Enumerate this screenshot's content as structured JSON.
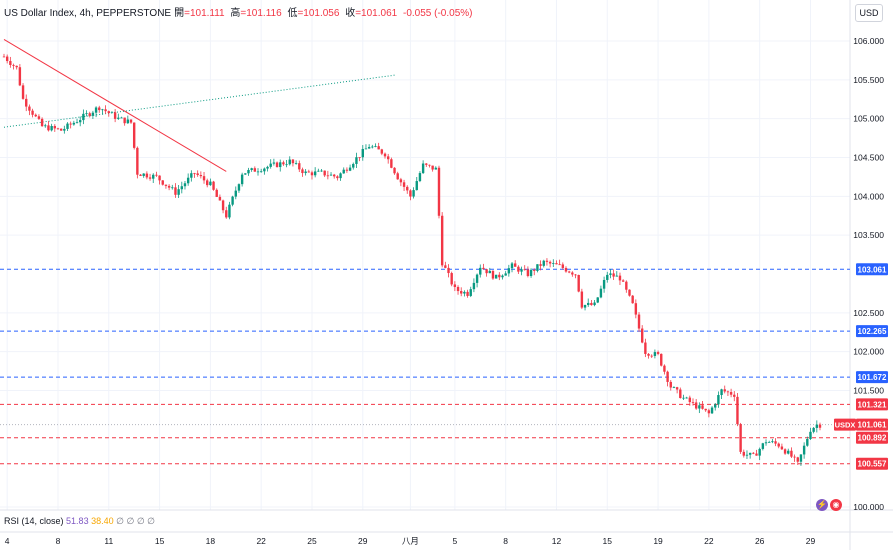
{
  "header": {
    "symbol": "US Dollar Index, 4h, PEPPERSTONE",
    "o_label": "開",
    "o_val": "=101.111",
    "h_label": "高",
    "h_val": "=101.116",
    "l_label": "低",
    "l_val": "=101.056",
    "c_label": "收",
    "c_val": "=101.061",
    "change": "-0.055 (-0.05%)"
  },
  "currency_button": "USD",
  "rsi": {
    "label": "RSI (14, close)",
    "v1": "51.83",
    "v2": "38.40",
    "rest": "∅ ∅ ∅ ∅"
  },
  "colors": {
    "up": "#089981",
    "down": "#f23645",
    "blue": "#2962ff",
    "red": "#f23645"
  },
  "chart_data": {
    "type": "candlestick",
    "ylim": [
      100.0,
      106.25
    ],
    "y_ticks": [
      "106.000",
      "105.500",
      "105.000",
      "104.500",
      "104.000",
      "103.500",
      "102.500",
      "102.000",
      "101.500",
      "100.000"
    ],
    "x_ticks": [
      "4",
      "8",
      "11",
      "15",
      "18",
      "22",
      "25",
      "29",
      "八月",
      "5",
      "8",
      "12",
      "15",
      "19",
      "22",
      "26",
      "29"
    ],
    "x_tick_index": [
      1,
      17,
      33,
      49,
      65,
      81,
      97,
      113,
      128,
      142,
      158,
      174,
      190,
      206,
      222,
      238,
      254
    ],
    "hlines": [
      {
        "value": 103.061,
        "label": "103.061",
        "color": "#2962ff"
      },
      {
        "value": 102.265,
        "label": "102.265",
        "color": "#2962ff"
      },
      {
        "value": 101.672,
        "label": "101.672",
        "color": "#2962ff"
      },
      {
        "value": 101.321,
        "label": "101.321",
        "color": "#f23645"
      },
      {
        "value": 100.892,
        "label": "100.892",
        "color": "#f23645"
      },
      {
        "value": 100.557,
        "label": "100.557",
        "color": "#f23645"
      }
    ],
    "last_price": {
      "value": 101.061,
      "label": "101.061",
      "symbol": "USDX"
    },
    "trendlines": [
      {
        "from": [
          0,
          106.02
        ],
        "to": [
          70,
          104.32
        ],
        "color": "#f23645",
        "style": "solid"
      },
      {
        "from": [
          0,
          104.89
        ],
        "to": [
          123,
          105.56
        ],
        "color": "#089981",
        "style": "dotted"
      }
    ],
    "anchors": [
      [
        0,
        105.8
      ],
      [
        4,
        105.65
      ],
      [
        6,
        105.25
      ],
      [
        12,
        104.9
      ],
      [
        18,
        104.85
      ],
      [
        24,
        105.0
      ],
      [
        30,
        105.15
      ],
      [
        36,
        105.0
      ],
      [
        40,
        104.95
      ],
      [
        42,
        104.3
      ],
      [
        48,
        104.25
      ],
      [
        54,
        104.05
      ],
      [
        60,
        104.3
      ],
      [
        65,
        104.15
      ],
      [
        70,
        103.75
      ],
      [
        75,
        104.3
      ],
      [
        80,
        104.35
      ],
      [
        90,
        104.45
      ],
      [
        95,
        104.3
      ],
      [
        100,
        104.3
      ],
      [
        105,
        104.25
      ],
      [
        110,
        104.45
      ],
      [
        115,
        104.65
      ],
      [
        120,
        104.55
      ],
      [
        124,
        104.25
      ],
      [
        128,
        104.0
      ],
      [
        132,
        104.4
      ],
      [
        136,
        104.35
      ],
      [
        138,
        103.15
      ],
      [
        142,
        102.8
      ],
      [
        146,
        102.75
      ],
      [
        150,
        103.1
      ],
      [
        155,
        102.95
      ],
      [
        160,
        103.1
      ],
      [
        165,
        103.0
      ],
      [
        170,
        103.15
      ],
      [
        175,
        103.1
      ],
      [
        180,
        103.0
      ],
      [
        182,
        102.6
      ],
      [
        186,
        102.6
      ],
      [
        190,
        103.0
      ],
      [
        194,
        102.95
      ],
      [
        198,
        102.6
      ],
      [
        202,
        102.0
      ],
      [
        206,
        101.95
      ],
      [
        210,
        101.55
      ],
      [
        214,
        101.4
      ],
      [
        218,
        101.3
      ],
      [
        222,
        101.2
      ],
      [
        226,
        101.5
      ],
      [
        230,
        101.45
      ],
      [
        232,
        100.7
      ],
      [
        236,
        100.65
      ],
      [
        240,
        100.85
      ],
      [
        244,
        100.8
      ],
      [
        248,
        100.65
      ],
      [
        250,
        100.55
      ],
      [
        254,
        101.0
      ],
      [
        256,
        101.06
      ]
    ]
  }
}
